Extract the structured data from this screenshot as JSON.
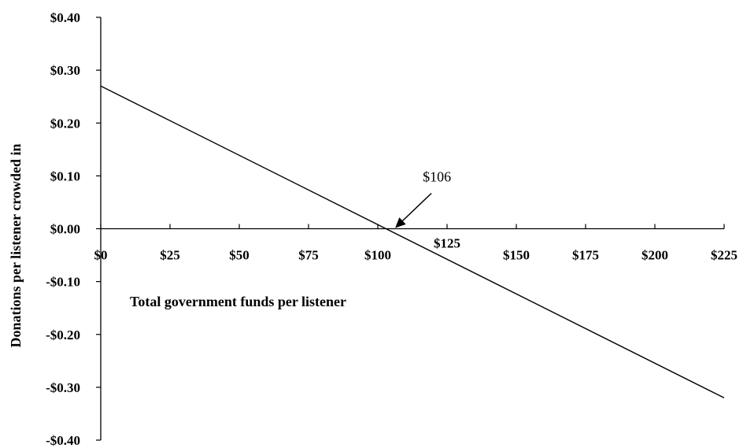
{
  "chart_data": {
    "type": "line",
    "title": "",
    "xlabel": "Total government funds per listener",
    "ylabel": "Donations per listener crowded in",
    "xlim": [
      0,
      225
    ],
    "ylim": [
      -0.4,
      0.4
    ],
    "x_ticks": [
      0,
      25,
      50,
      75,
      100,
      125,
      150,
      175,
      200,
      225
    ],
    "x_tick_labels": [
      "$0",
      "$25",
      "$50",
      "$75",
      "$100",
      "$125",
      "$150",
      "$175",
      "$200",
      "$225"
    ],
    "y_ticks": [
      0.4,
      0.3,
      0.2,
      0.1,
      0.0,
      -0.1,
      -0.2,
      -0.3,
      -0.4
    ],
    "y_tick_labels": [
      "$0.40",
      "$0.30",
      "$0.20",
      "$0.10",
      "$0.00",
      "-$0.10",
      "-$0.20",
      "-$0.30",
      "-$0.40"
    ],
    "grid": false,
    "series": [
      {
        "x": [
          0,
          225
        ],
        "y": [
          0.27,
          -0.32
        ]
      }
    ],
    "annotations": [
      {
        "text": "$106",
        "x": 106,
        "y": 0.0
      }
    ]
  }
}
